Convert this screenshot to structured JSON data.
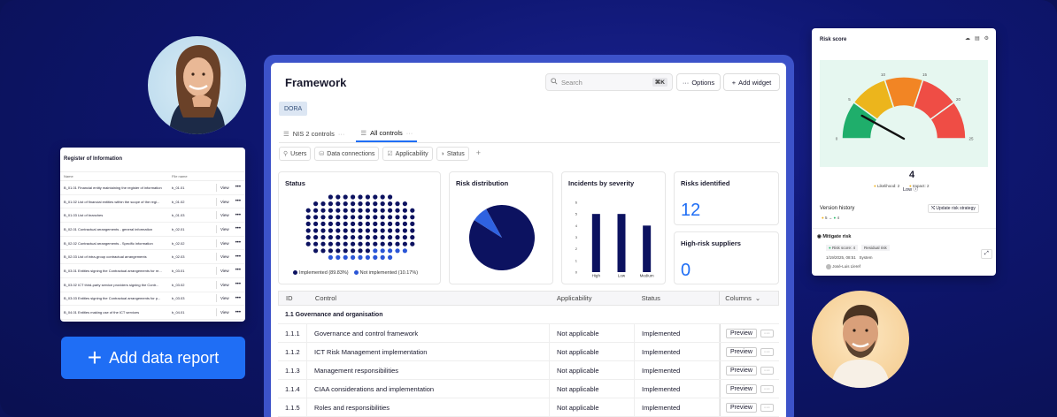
{
  "register": {
    "title": "Register of Information",
    "columns": [
      "Name",
      "File name"
    ],
    "rows": [
      {
        "name": "B_01.01 Financial entity maintaining the register of information",
        "file": "b_01.01"
      },
      {
        "name": "B_01.02 List of financial entities within the scope of the regi...",
        "file": "b_01.02"
      },
      {
        "name": "B_01.03 List of branches",
        "file": "b_01.03"
      },
      {
        "name": "B_02.01 Contractual arrangements - general information",
        "file": "b_02.01"
      },
      {
        "name": "B_02.02 Contractual arrangements - Specific information",
        "file": "b_02.02"
      },
      {
        "name": "B_02.03 List of intra-group contractual arrangements",
        "file": "b_02.03"
      },
      {
        "name": "B_03.01 Entities signing the Contractual arrangements for re...",
        "file": "b_03.01"
      },
      {
        "name": "B_03.02 ICT third-party service providers signing the Contr...",
        "file": "b_03.02"
      },
      {
        "name": "B_03.03 Entities signing the Contractual arrangements for p...",
        "file": "b_03.03"
      },
      {
        "name": "B_04.01 Entities making use of the ICT services",
        "file": "b_04.01"
      }
    ],
    "view_label": "View",
    "more_label": "•••"
  },
  "add_report": {
    "label": "Add data report",
    "plus": "+"
  },
  "framework": {
    "title": "Framework",
    "search_placeholder": "Search",
    "search_shortcut": "⌘K",
    "options_label": "Options",
    "options_icon": "···",
    "add_widget_label": "Add widget",
    "add_widget_icon": "+",
    "badge": "DORA",
    "tabs": [
      {
        "label": "NIS 2 controls",
        "icon": "☰",
        "more": "···"
      },
      {
        "label": "All controls",
        "icon": "☰",
        "more": "···"
      }
    ],
    "filters": [
      {
        "label": "Users",
        "icon": "⚲"
      },
      {
        "label": "Data connections",
        "icon": "⛁"
      },
      {
        "label": "Applicability",
        "icon": "☑"
      },
      {
        "label": "Status",
        "icon": "◑"
      }
    ],
    "filter_add": "+"
  },
  "widgets": {
    "status": {
      "title": "Status",
      "legend": [
        "Implemented (89.83%)",
        "Not implemented (10.17%)"
      ]
    },
    "risk_distribution": {
      "title": "Risk distribution"
    },
    "incidents": {
      "title": "Incidents by severity"
    },
    "risks_identified": {
      "title": "Risks identified",
      "value": "12"
    },
    "high_risk_suppliers": {
      "title": "High-risk suppliers",
      "value": "0"
    }
  },
  "chart_data": [
    {
      "type": "scatter",
      "subtype": "dot-matrix",
      "title": "Status",
      "series": [
        {
          "name": "Implemented (89.83%)",
          "value": 89.83,
          "color": "#0c1260"
        },
        {
          "name": "Not implemented (10.17%)",
          "value": 10.17,
          "color": "#2a55d6"
        }
      ]
    },
    {
      "type": "pie",
      "title": "Risk distribution",
      "values": [
        92,
        8
      ],
      "colors": [
        "#0c1260",
        "#2f62e0"
      ]
    },
    {
      "type": "bar",
      "title": "Incidents by severity",
      "categories": [
        "High",
        "Low",
        "Medium"
      ],
      "values": [
        5,
        5,
        4
      ],
      "ylim": [
        0,
        6
      ],
      "yticks": [
        0,
        1,
        2,
        3,
        4,
        5,
        6
      ]
    }
  ],
  "table": {
    "headers": [
      "ID",
      "Control",
      "Applicability",
      "Status",
      "Columns"
    ],
    "group": "1.1  Governance and organisation",
    "rows": [
      {
        "id": "1.1.1",
        "control": "Governance and control framework",
        "applicability": "Not applicable",
        "status": "Implemented"
      },
      {
        "id": "1.1.2",
        "control": "ICT Risk Management implementation",
        "applicability": "Not applicable",
        "status": "Implemented"
      },
      {
        "id": "1.1.3",
        "control": "Management responsibilities",
        "applicability": "Not applicable",
        "status": "Implemented"
      },
      {
        "id": "1.1.4",
        "control": "CIAA considerations and implementation",
        "applicability": "Not applicable",
        "status": "Implemented"
      },
      {
        "id": "1.1.5",
        "control": "Roles and responsibilities",
        "applicability": "Not applicable",
        "status": "Implemented"
      }
    ],
    "preview_label": "Preview",
    "more_label": "···",
    "columns_chevron": "⌄"
  },
  "risk_score": {
    "title": "Risk score",
    "gauge_value": "4",
    "gauge_label": "Low",
    "gauge_ticks": [
      "0",
      "5",
      "10",
      "15",
      "20",
      "25"
    ],
    "gauge_level": 4,
    "gauge_max": 25,
    "likelihood": "Likelihood: 2",
    "impact": "Impact: 2",
    "version_history": "Version history",
    "version_from": "5",
    "version_to": "4",
    "version_arrow": "→",
    "update_label": "Update risk strategy",
    "mitigate_title": "Mitigate risk",
    "risk_score_tag": "Risk score: 4",
    "residual_tag": "Residual risk",
    "timestamp": "1/19/2025, 08:51",
    "system": "System",
    "user": "José-Luis Lleref"
  }
}
